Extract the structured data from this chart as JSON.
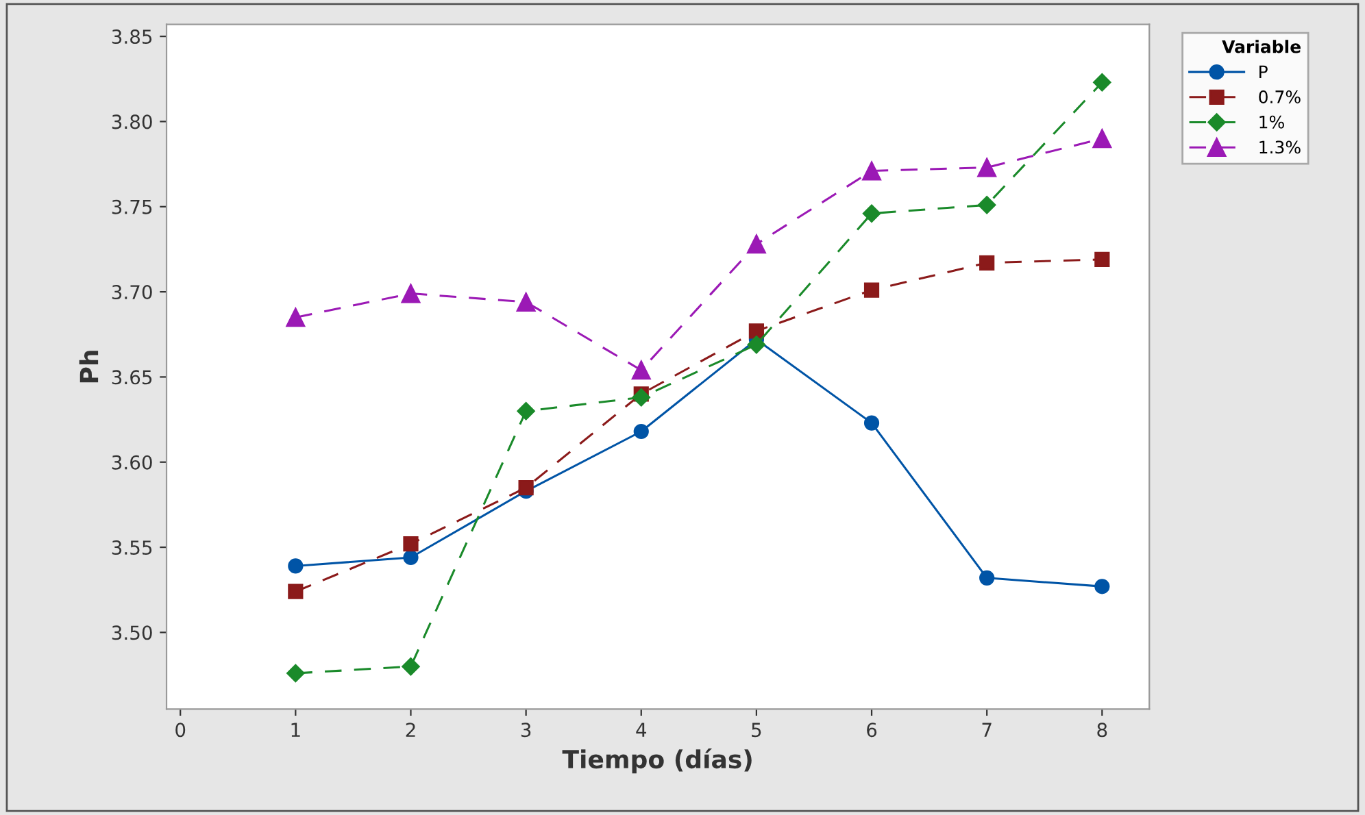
{
  "chart_data": {
    "type": "line",
    "xlabel": "Tiempo (días)",
    "ylabel": "Ph",
    "legend_title": "Variable",
    "legend": "top right",
    "x": [
      1,
      2,
      3,
      4,
      5,
      6,
      7,
      8
    ],
    "xlim": [
      -0.12,
      8.41
    ],
    "xticks": [
      0,
      1,
      2,
      3,
      4,
      5,
      6,
      7,
      8
    ],
    "ylim": [
      3.455,
      3.857
    ],
    "yticks": [
      {
        "value": 3.5,
        "label": "3.50"
      },
      {
        "value": 3.55,
        "label": "3.55"
      },
      {
        "value": 3.6,
        "label": "3.60"
      },
      {
        "value": 3.65,
        "label": "3.65"
      },
      {
        "value": 3.7,
        "label": "3.70"
      },
      {
        "value": 3.75,
        "label": "3.75"
      },
      {
        "value": 3.8,
        "label": "3.80"
      },
      {
        "value": 3.85,
        "label": "3.85"
      }
    ],
    "grid": false,
    "series": [
      {
        "name": "P",
        "color": "#0054a6",
        "marker": "circle",
        "line_style": "solid",
        "values": [
          3.539,
          3.544,
          3.583,
          3.618,
          3.672,
          3.623,
          3.532,
          3.527
        ]
      },
      {
        "name": "0.7%",
        "color": "#8b1a1a",
        "marker": "square",
        "line_style": "dashed",
        "values": [
          3.524,
          3.552,
          3.585,
          3.64,
          3.677,
          3.701,
          3.717,
          3.719
        ]
      },
      {
        "name": "1%",
        "color": "#1a8a2a",
        "marker": "diamond",
        "line_style": "dashed",
        "values": [
          3.476,
          3.48,
          3.63,
          3.638,
          3.669,
          3.746,
          3.751,
          3.823
        ]
      },
      {
        "name": "1.3%",
        "color": "#9b19b5",
        "marker": "triangle",
        "line_style": "dashed",
        "values": [
          3.685,
          3.699,
          3.694,
          3.654,
          3.728,
          3.771,
          3.773,
          3.79
        ]
      }
    ]
  }
}
